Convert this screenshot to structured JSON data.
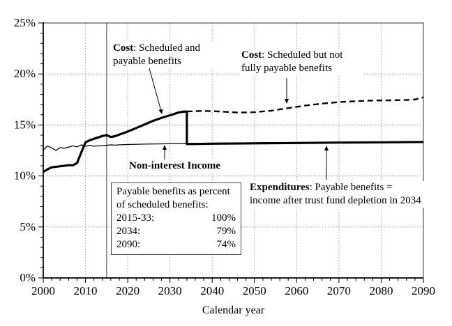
{
  "figure": {
    "xlabel": "Calendar year",
    "annotations": {
      "cost_scheduled": {
        "term": "Cost",
        "rest": ": Scheduled and payable benefits"
      },
      "cost_unpayable": {
        "term": "Cost",
        "rest": ": Scheduled but not fully payable benefits"
      },
      "non_interest_income": {
        "label": "Non-interest Income"
      },
      "expenditures": {
        "term": "Expenditures",
        "rest": ": Payable benefits = income after trust fund depletion in 2034"
      }
    },
    "infobox": {
      "header": "Payable benefits as percent of scheduled benefits:",
      "rows": [
        {
          "label": "2015-33:",
          "value": "100%"
        },
        {
          "label": "2034:",
          "value": "79%"
        },
        {
          "label": "2090:",
          "value": "74%"
        }
      ]
    }
  },
  "chart_data": {
    "type": "line",
    "title": "",
    "xlabel": "Calendar year",
    "ylabel": "",
    "xlim": [
      2000,
      2090
    ],
    "ylim": [
      0,
      25
    ],
    "x_tick_labels": [
      "2000",
      "2010",
      "2020",
      "2030",
      "2040",
      "2050",
      "2060",
      "2070",
      "2080",
      "2090"
    ],
    "y_tick_labels": [
      "0%",
      "5%",
      "10%",
      "15%",
      "20%",
      "25%"
    ],
    "grid": true,
    "history_divider_year": 2015,
    "trust_fund_depletion_year": 2034,
    "colors": {
      "line": "#000000",
      "grid": "#9a9a9a",
      "divider": "#787878"
    },
    "series": [
      {
        "name": "cost-scheduled-and-payable",
        "style": "solid-thick",
        "points": [
          [
            2000,
            10.4
          ],
          [
            2001,
            10.65
          ],
          [
            2002,
            10.85
          ],
          [
            2003,
            10.9
          ],
          [
            2004,
            10.95
          ],
          [
            2005,
            11.0
          ],
          [
            2006,
            11.05
          ],
          [
            2007,
            11.05
          ],
          [
            2008,
            11.25
          ],
          [
            2009,
            12.3
          ],
          [
            2010,
            13.3
          ],
          [
            2011,
            13.5
          ],
          [
            2012,
            13.65
          ],
          [
            2013,
            13.78
          ],
          [
            2014,
            13.92
          ],
          [
            2015,
            14.0
          ],
          [
            2016,
            13.82
          ],
          [
            2017,
            13.9
          ],
          [
            2018,
            14.05
          ],
          [
            2020,
            14.35
          ],
          [
            2022,
            14.7
          ],
          [
            2024,
            15.05
          ],
          [
            2026,
            15.4
          ],
          [
            2028,
            15.7
          ],
          [
            2030,
            15.95
          ],
          [
            2031,
            16.08
          ],
          [
            2032,
            16.22
          ],
          [
            2033,
            16.3
          ],
          [
            2034,
            16.32
          ],
          [
            2034,
            13.12
          ],
          [
            2040,
            13.16
          ],
          [
            2050,
            13.2
          ],
          [
            2060,
            13.23
          ],
          [
            2070,
            13.27
          ],
          [
            2080,
            13.3
          ],
          [
            2090,
            13.33
          ]
        ]
      },
      {
        "name": "non-interest-income",
        "style": "solid-thin",
        "points": [
          [
            2000,
            12.55
          ],
          [
            2001,
            12.95
          ],
          [
            2002,
            12.75
          ],
          [
            2003,
            12.5
          ],
          [
            2004,
            12.78
          ],
          [
            2005,
            12.72
          ],
          [
            2006,
            12.82
          ],
          [
            2007,
            12.95
          ],
          [
            2008,
            12.85
          ],
          [
            2009,
            13.05
          ],
          [
            2010,
            12.9
          ],
          [
            2011,
            13.0
          ],
          [
            2012,
            12.92
          ],
          [
            2013,
            12.95
          ],
          [
            2014,
            12.95
          ],
          [
            2015,
            13.0
          ],
          [
            2016,
            13.05
          ],
          [
            2017,
            13.02
          ],
          [
            2018,
            13.05
          ],
          [
            2020,
            13.08
          ],
          [
            2024,
            13.12
          ],
          [
            2028,
            13.15
          ],
          [
            2032,
            13.18
          ],
          [
            2036,
            13.2
          ],
          [
            2040,
            13.22
          ],
          [
            2050,
            13.25
          ],
          [
            2060,
            13.28
          ],
          [
            2070,
            13.3
          ],
          [
            2080,
            13.33
          ],
          [
            2090,
            13.36
          ]
        ]
      },
      {
        "name": "cost-scheduled-not-fully-payable",
        "style": "dashed",
        "points": [
          [
            2034,
            16.32
          ],
          [
            2038,
            16.38
          ],
          [
            2042,
            16.32
          ],
          [
            2046,
            16.22
          ],
          [
            2050,
            16.25
          ],
          [
            2054,
            16.4
          ],
          [
            2058,
            16.65
          ],
          [
            2062,
            16.9
          ],
          [
            2066,
            17.1
          ],
          [
            2070,
            17.25
          ],
          [
            2074,
            17.33
          ],
          [
            2078,
            17.4
          ],
          [
            2082,
            17.42
          ],
          [
            2086,
            17.45
          ],
          [
            2088,
            17.5
          ],
          [
            2090,
            17.72
          ]
        ]
      }
    ]
  }
}
